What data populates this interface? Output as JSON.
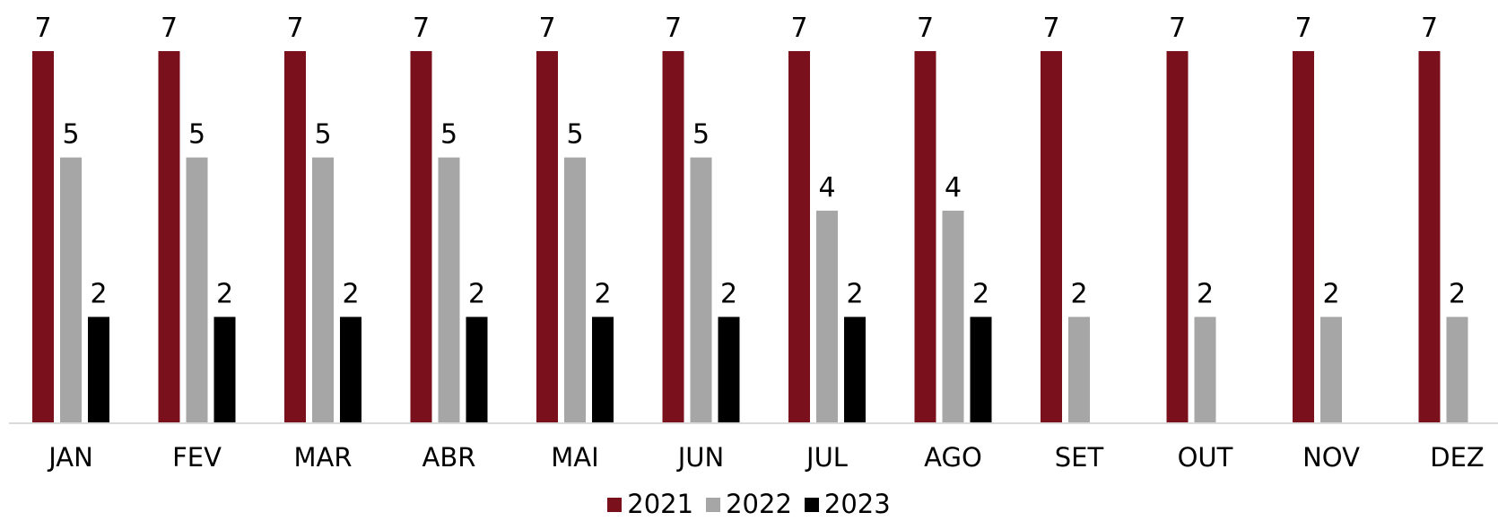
{
  "chart_data": {
    "type": "bar",
    "title": "",
    "xlabel": "",
    "ylabel": "",
    "categories": [
      "JAN",
      "FEV",
      "MAR",
      "ABR",
      "MAI",
      "JUN",
      "JUL",
      "AGO",
      "SET",
      "OUT",
      "NOV",
      "DEZ"
    ],
    "series": [
      {
        "name": "2021",
        "color": "#7B101D",
        "values": [
          7,
          7,
          7,
          7,
          7,
          7,
          7,
          7,
          7,
          7,
          7,
          7
        ]
      },
      {
        "name": "2022",
        "color": "#A6A6A6",
        "values": [
          5,
          5,
          5,
          5,
          5,
          5,
          4,
          4,
          2,
          2,
          2,
          2
        ]
      },
      {
        "name": "2023",
        "color": "#000000",
        "values": [
          2,
          2,
          2,
          2,
          2,
          2,
          2,
          2,
          null,
          null,
          null,
          null
        ]
      }
    ],
    "ylim": [
      0,
      7
    ],
    "grid": false,
    "legend_position": "bottom",
    "data_labels": true
  }
}
